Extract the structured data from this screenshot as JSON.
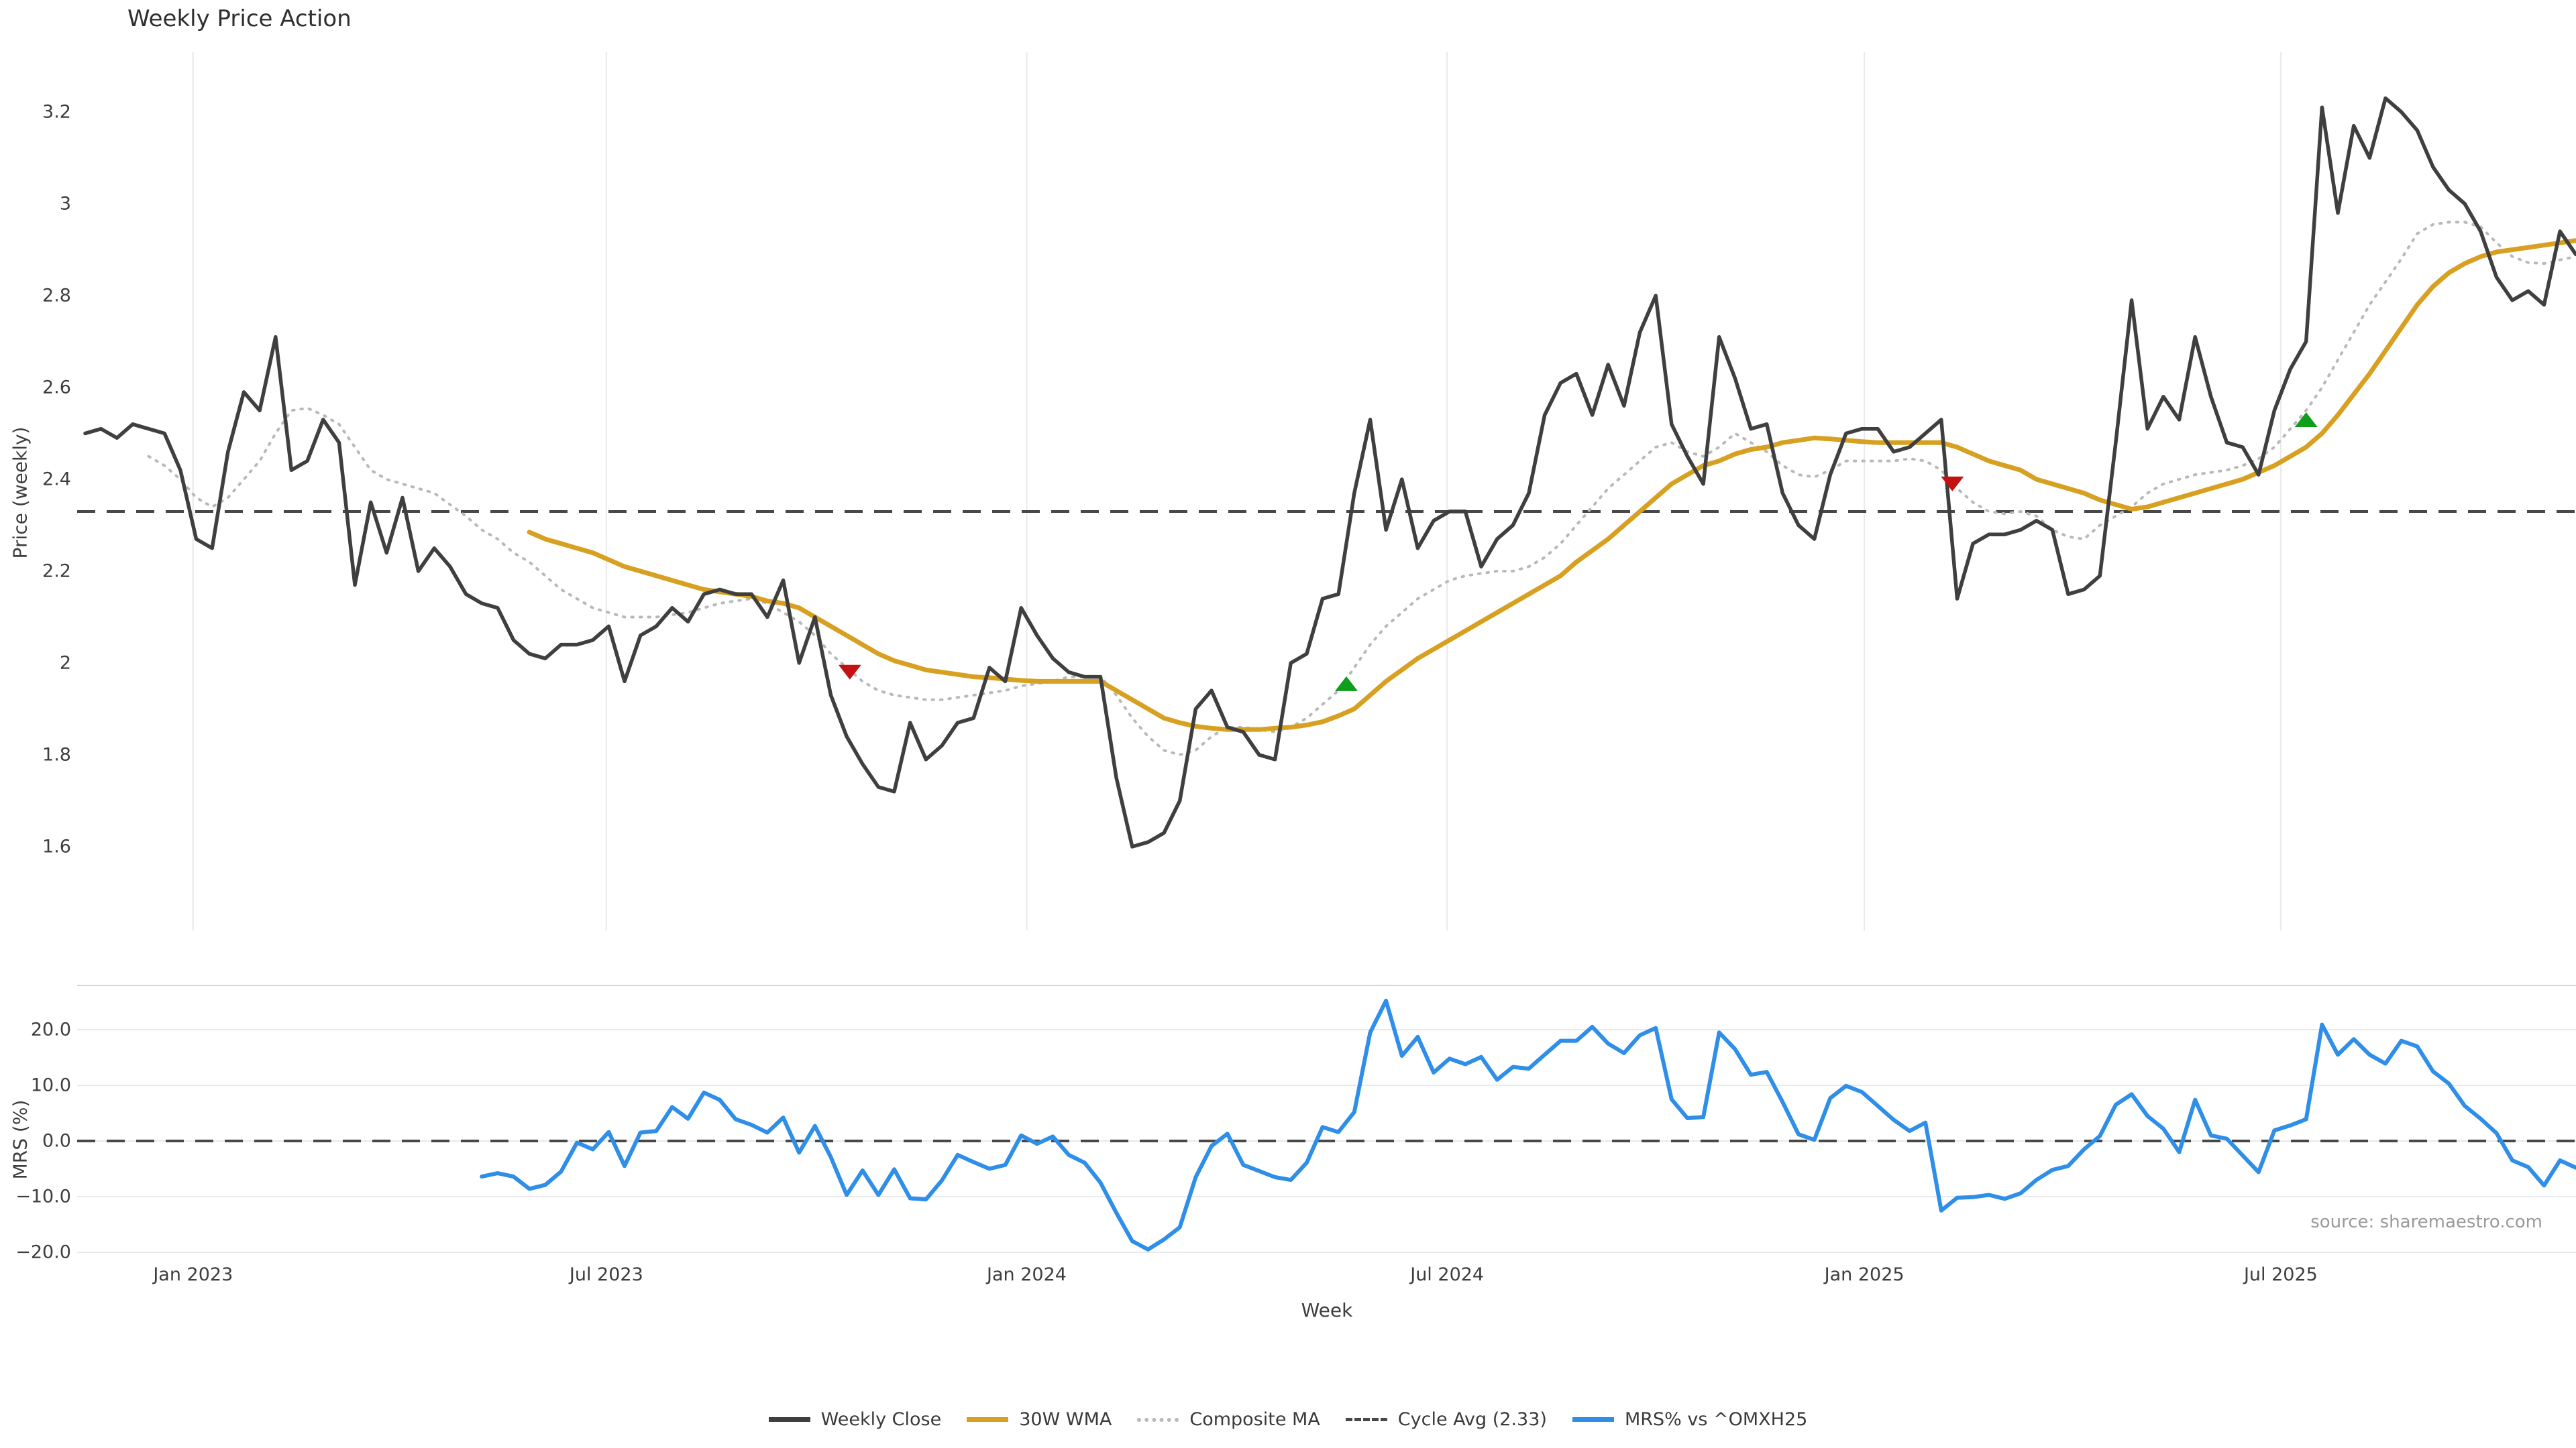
{
  "title": "Weekly Price Action",
  "source_note": "source: sharemaestro.com",
  "colors": {
    "close": "#3f3f3f",
    "wma": "#d7a021",
    "composite": "#b9b9b9",
    "cycle_dash": "#484848",
    "mrs": "#2e8ee8",
    "buy": "#0f9e1c",
    "sell": "#c41212",
    "grid": "#e9e9ee",
    "spine": "#d4d4da",
    "text": "#3d3d3d",
    "muted": "#9a9a9a"
  },
  "legend": {
    "items": [
      {
        "label": "Weekly Close",
        "swatch": "solid",
        "color_key": "close"
      },
      {
        "label": "30W WMA",
        "swatch": "solid",
        "color_key": "wma"
      },
      {
        "label": "Composite MA",
        "swatch": "dotted",
        "color_key": "composite"
      },
      {
        "label": "Cycle Avg (2.33)",
        "swatch": "dashed",
        "color_key": "cycle_dash"
      },
      {
        "label": "MRS% vs ^OMXH25",
        "swatch": "solid",
        "color_key": "mrs"
      }
    ]
  },
  "chart_data": {
    "type": "line",
    "x_axis": {
      "label": "Week",
      "unit": "week_index",
      "range_weeks": [
        0,
        157
      ],
      "ticks": [
        {
          "label": "Jan 2023",
          "week": 6.8
        },
        {
          "label": "Jul 2023",
          "week": 32.85
        },
        {
          "label": "Jan 2024",
          "week": 59.35
        },
        {
          "label": "Jul 2024",
          "week": 85.85
        },
        {
          "label": "Jan 2025",
          "week": 112.15
        },
        {
          "label": "Jul 2025",
          "week": 138.4
        }
      ]
    },
    "panels": [
      {
        "name": "price",
        "ylabel": "Price (weekly)",
        "ylim": [
          1.45,
          3.33
        ],
        "grid": "vertical",
        "yticks": [
          {
            "label": "3.2",
            "value": 3.2
          },
          {
            "label": "3",
            "value": 3.0
          },
          {
            "label": "2.8",
            "value": 2.8
          },
          {
            "label": "2.6",
            "value": 2.6
          },
          {
            "label": "2.4",
            "value": 2.4
          },
          {
            "label": "2.2",
            "value": 2.2
          },
          {
            "label": "2",
            "value": 2.0
          },
          {
            "label": "1.8",
            "value": 1.8
          },
          {
            "label": "1.6",
            "value": 1.6
          }
        ],
        "cycle_avg": 2.33,
        "series": [
          {
            "name": "Weekly Close",
            "color_key": "close",
            "style": "solid",
            "start_week": 0,
            "values": [
              2.5,
              2.51,
              2.49,
              2.52,
              2.51,
              2.5,
              2.42,
              2.27,
              2.25,
              2.46,
              2.59,
              2.55,
              2.71,
              2.42,
              2.44,
              2.53,
              2.48,
              2.17,
              2.35,
              2.24,
              2.36,
              2.2,
              2.25,
              2.21,
              2.15,
              2.13,
              2.12,
              2.05,
              2.02,
              2.01,
              2.04,
              2.04,
              2.05,
              2.08,
              1.96,
              2.06,
              2.08,
              2.12,
              2.09,
              2.15,
              2.16,
              2.15,
              2.15,
              2.1,
              2.18,
              2.0,
              2.1,
              1.93,
              1.84,
              1.78,
              1.73,
              1.72,
              1.87,
              1.79,
              1.82,
              1.87,
              1.88,
              1.99,
              1.96,
              2.12,
              2.06,
              2.01,
              1.98,
              1.97,
              1.97,
              1.75,
              1.6,
              1.61,
              1.63,
              1.7,
              1.9,
              1.94,
              1.86,
              1.85,
              1.8,
              1.79,
              2.0,
              2.02,
              2.14,
              2.15,
              2.37,
              2.53,
              2.29,
              2.4,
              2.25,
              2.31,
              2.33,
              2.33,
              2.21,
              2.27,
              2.3,
              2.37,
              2.54,
              2.61,
              2.63,
              2.54,
              2.65,
              2.56,
              2.72,
              2.8,
              2.52,
              2.45,
              2.39,
              2.71,
              2.62,
              2.51,
              2.52,
              2.37,
              2.3,
              2.27,
              2.41,
              2.5,
              2.51,
              2.51,
              2.46,
              2.47,
              2.5,
              2.53,
              2.14,
              2.26,
              2.28,
              2.28,
              2.29,
              2.31,
              2.29,
              2.15,
              2.16,
              2.19,
              2.48,
              2.79,
              2.51,
              2.58,
              2.53,
              2.71,
              2.58,
              2.48,
              2.47,
              2.41,
              2.55,
              2.64,
              2.7,
              3.21,
              2.98,
              3.17,
              3.1,
              3.23,
              3.2,
              3.16,
              3.08,
              3.03,
              3.0,
              2.94,
              2.84,
              2.79,
              2.81,
              2.78,
              2.94,
              2.89
            ]
          },
          {
            "name": "30W WMA",
            "color_key": "wma",
            "style": "solid",
            "start_week": 28,
            "values": [
              2.285,
              2.27,
              2.26,
              2.25,
              2.24,
              2.225,
              2.21,
              2.2,
              2.19,
              2.18,
              2.17,
              2.16,
              2.155,
              2.15,
              2.145,
              2.135,
              2.13,
              2.12,
              2.1,
              2.08,
              2.06,
              2.04,
              2.02,
              2.005,
              1.995,
              1.985,
              1.98,
              1.975,
              1.97,
              1.968,
              1.965,
              1.962,
              1.96,
              1.96,
              1.96,
              1.96,
              1.96,
              1.94,
              1.92,
              1.9,
              1.88,
              1.87,
              1.862,
              1.858,
              1.855,
              1.855,
              1.855,
              1.858,
              1.86,
              1.865,
              1.872,
              1.885,
              1.9,
              1.93,
              1.96,
              1.985,
              2.01,
              2.03,
              2.05,
              2.07,
              2.09,
              2.11,
              2.13,
              2.15,
              2.17,
              2.19,
              2.22,
              2.245,
              2.27,
              2.3,
              2.33,
              2.36,
              2.39,
              2.41,
              2.43,
              2.44,
              2.455,
              2.465,
              2.47,
              2.48,
              2.485,
              2.49,
              2.488,
              2.485,
              2.482,
              2.48,
              2.48,
              2.48,
              2.48,
              2.48,
              2.47,
              2.455,
              2.44,
              2.43,
              2.42,
              2.4,
              2.39,
              2.38,
              2.37,
              2.355,
              2.345,
              2.335,
              2.34,
              2.35,
              2.36,
              2.37,
              2.38,
              2.39,
              2.4,
              2.415,
              2.43,
              2.45,
              2.47,
              2.5,
              2.54,
              2.585,
              2.63,
              2.68,
              2.73,
              2.78,
              2.82,
              2.85,
              2.87,
              2.885,
              2.895,
              2.9,
              2.905,
              2.91,
              2.915,
              2.92
            ]
          },
          {
            "name": "Composite MA",
            "color_key": "composite",
            "style": "dotted",
            "start_week": 4,
            "values": [
              2.45,
              2.43,
              2.4,
              2.36,
              2.34,
              2.36,
              2.4,
              2.44,
              2.5,
              2.55,
              2.555,
              2.54,
              2.52,
              2.47,
              2.42,
              2.4,
              2.39,
              2.38,
              2.37,
              2.345,
              2.32,
              2.29,
              2.27,
              2.24,
              2.22,
              2.19,
              2.16,
              2.14,
              2.12,
              2.11,
              2.1,
              2.1,
              2.1,
              2.105,
              2.11,
              2.12,
              2.13,
              2.135,
              2.14,
              2.13,
              2.11,
              2.09,
              2.06,
              2.02,
              1.99,
              1.96,
              1.94,
              1.93,
              1.925,
              1.92,
              1.92,
              1.925,
              1.93,
              1.935,
              1.94,
              1.95,
              1.955,
              1.96,
              1.97,
              1.97,
              1.97,
              1.93,
              1.88,
              1.84,
              1.81,
              1.8,
              1.81,
              1.84,
              1.86,
              1.86,
              1.855,
              1.85,
              1.86,
              1.88,
              1.91,
              1.94,
              1.99,
              2.04,
              2.08,
              2.11,
              2.14,
              2.16,
              2.18,
              2.19,
              2.195,
              2.2,
              2.2,
              2.21,
              2.23,
              2.26,
              2.3,
              2.34,
              2.38,
              2.41,
              2.44,
              2.47,
              2.48,
              2.46,
              2.45,
              2.47,
              2.5,
              2.48,
              2.46,
              2.43,
              2.41,
              2.405,
              2.42,
              2.44,
              2.44,
              2.44,
              2.44,
              2.445,
              2.44,
              2.42,
              2.38,
              2.35,
              2.33,
              2.325,
              2.33,
              2.32,
              2.29,
              2.275,
              2.27,
              2.3,
              2.32,
              2.34,
              2.37,
              2.39,
              2.4,
              2.41,
              2.415,
              2.42,
              2.43,
              2.445,
              2.47,
              2.51,
              2.55,
              2.6,
              2.66,
              2.72,
              2.78,
              2.83,
              2.88,
              2.935,
              2.955,
              2.96,
              2.96,
              2.95,
              2.915,
              2.885,
              2.872,
              2.87,
              2.878,
              2.885
            ]
          }
        ],
        "markers": [
          {
            "type": "sell",
            "week": 48.2,
            "price": 1.98
          },
          {
            "type": "buy",
            "week": 79.5,
            "price": 1.955
          },
          {
            "type": "sell",
            "week": 117.7,
            "price": 2.39
          },
          {
            "type": "buy",
            "week": 140.0,
            "price": 2.53
          }
        ]
      },
      {
        "name": "mrs",
        "ylabel": "MRS (%)",
        "ylim": [
          -24,
          28
        ],
        "grid": "horizontal",
        "yticks": [
          {
            "label": "20.0",
            "value": 20
          },
          {
            "label": "10.0",
            "value": 10
          },
          {
            "label": "0.0",
            "value": 0
          },
          {
            "label": "−10.0",
            "value": -10
          },
          {
            "label": "−20.0",
            "value": -20
          }
        ],
        "zero_line": 0,
        "series": [
          {
            "name": "MRS% vs ^OMXH25",
            "color_key": "mrs",
            "style": "solid",
            "start_week": 25,
            "values": [
              -6.4,
              -5.8,
              -6.4,
              -8.6,
              -7.9,
              -5.5,
              -0.3,
              -1.5,
              1.6,
              -4.5,
              1.5,
              1.8,
              6.1,
              4.0,
              8.7,
              7.4,
              3.9,
              2.9,
              1.5,
              4.2,
              -2.1,
              2.7,
              -2.9,
              -9.7,
              -5.3,
              -9.7,
              -5.1,
              -10.3,
              -10.5,
              -7.1,
              -2.5,
              -3.8,
              -5.0,
              -4.3,
              1.0,
              -0.5,
              0.8,
              -2.5,
              -3.9,
              -7.5,
              -12.9,
              -18.0,
              -19.5,
              -17.7,
              -15.5,
              -6.5,
              -0.9,
              1.3,
              -4.3,
              -5.4,
              -6.5,
              -7.0,
              -3.9,
              2.5,
              1.6,
              5.2,
              19.5,
              25.2,
              15.3,
              18.7,
              12.3,
              14.8,
              13.8,
              15.1,
              11.0,
              13.3,
              13.0,
              15.5,
              18.0,
              18.0,
              20.5,
              17.5,
              15.8,
              19.0,
              20.3,
              7.5,
              4.1,
              4.3,
              19.5,
              16.5,
              11.9,
              12.4,
              7.0,
              1.2,
              0.2,
              7.7,
              9.9,
              8.8,
              6.3,
              3.8,
              1.8,
              3.3,
              -12.5,
              -10.2,
              -10.1,
              -9.7,
              -10.4,
              -9.4,
              -7.0,
              -5.2,
              -4.5,
              -1.5,
              0.9,
              6.5,
              8.4,
              4.5,
              2.2,
              -2.0,
              7.4,
              1.0,
              0.4,
              -2.6,
              -5.6,
              1.9,
              2.8,
              3.9,
              20.9,
              15.5,
              18.3,
              15.5,
              13.9,
              18.0,
              17.0,
              12.5,
              10.3,
              6.3,
              4.0,
              1.4,
              -3.5,
              -4.7,
              -8.0,
              -3.5,
              -4.8
            ]
          }
        ]
      }
    ]
  }
}
